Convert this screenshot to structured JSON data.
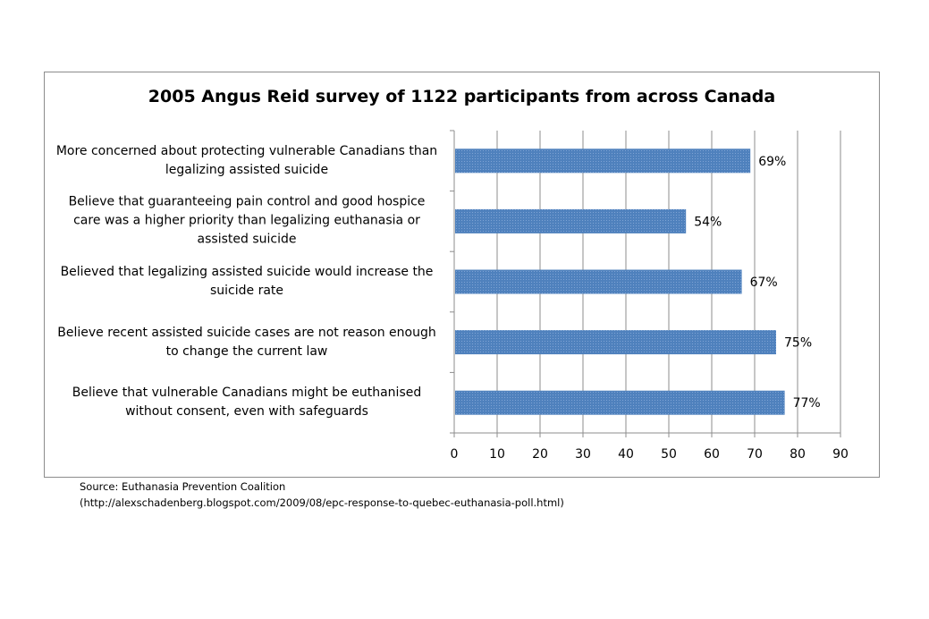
{
  "chart_data": {
    "type": "bar",
    "orientation": "horizontal",
    "title": "2005 Angus Reid survey of 1122 participants from across Canada",
    "categories": [
      "More concerned about protecting vulnerable Canadians than legalizing assisted suicide",
      "Believe that guaranteeing pain control and good hospice care was a higher priority than legalizing euthanasia or assisted suicide",
      "Believed that legalizing assisted suicide would increase the suicide rate",
      "Believe recent assisted suicide cases are not reason enough to change the current law",
      "Believe that vulnerable Canadians might be euthanised without consent, even with safeguards"
    ],
    "values": [
      69,
      54,
      67,
      75,
      77
    ],
    "data_labels": [
      "69%",
      "54%",
      "67%",
      "75%",
      "77%"
    ],
    "xlim": [
      0,
      90
    ],
    "x_ticks": [
      "0",
      "10",
      "20",
      "30",
      "40",
      "50",
      "60",
      "70",
      "80",
      "90"
    ],
    "grid": true,
    "legend": "none",
    "bar_color": "#4f81bd"
  },
  "source": {
    "line1": "Source: Euthanasia Prevention Coalition",
    "line2": "(http://alexschadenberg.blogspot.com/2009/08/epc-response-to-quebec-euthanasia-poll.html)"
  }
}
